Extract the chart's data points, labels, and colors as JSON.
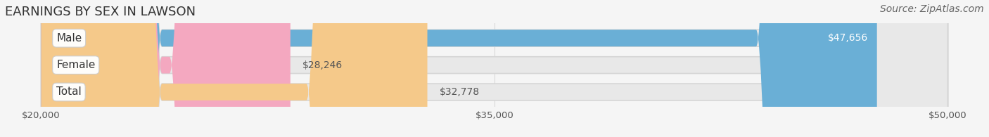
{
  "title": "EARNINGS BY SEX IN LAWSON",
  "source": "Source: ZipAtlas.com",
  "categories": [
    "Male",
    "Female",
    "Total"
  ],
  "values": [
    47656,
    28246,
    32778
  ],
  "value_labels": [
    "$47,656",
    "$28,246",
    "$32,778"
  ],
  "bar_colors": [
    "#6aafd6",
    "#f4a8c0",
    "#f5c98a"
  ],
  "bar_bg_color": "#e8e8e8",
  "xmin": 20000,
  "xmax": 50000,
  "xticks": [
    20000,
    35000,
    50000
  ],
  "xticklabels": [
    "$20,000",
    "$35,000",
    "$50,000"
  ],
  "background_color": "#f5f5f5",
  "title_fontsize": 13,
  "source_fontsize": 10,
  "label_fontsize": 11,
  "value_fontsize": 10,
  "value_label_inside": [
    true,
    false,
    false
  ],
  "value_label_colors": [
    "white",
    "#555555",
    "#555555"
  ]
}
